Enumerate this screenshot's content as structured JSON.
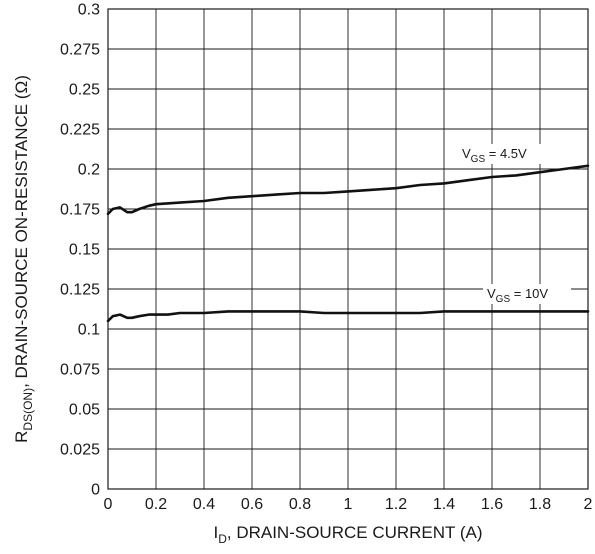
{
  "chart_data": {
    "type": "line",
    "xlabel": {
      "main": "I",
      "sub": "D",
      "rest": ", DRAIN-SOURCE CURRENT (A)"
    },
    "ylabel": {
      "main": "R",
      "sub": "DS(ON)",
      "rest": ", DRAIN-SOURCE ON-RESISTANCE (Ω)"
    },
    "xlim": [
      0,
      2
    ],
    "ylim": [
      0,
      0.3
    ],
    "x_ticks": [
      "0",
      "0.2",
      "0.4",
      "0.6",
      "0.8",
      "1",
      "1.2",
      "1.4",
      "1.6",
      "1.8",
      "2"
    ],
    "y_ticks": [
      "0",
      "0.025",
      "0.05",
      "0.075",
      "0.1",
      "0.125",
      "0.15",
      "0.175",
      "0.2",
      "0.225",
      "0.25",
      "0.275",
      "0.3"
    ],
    "grid": true,
    "series": [
      {
        "name": "V_GS = 4.5V",
        "label": {
          "main": "V",
          "sub": "GS",
          "rest": " = 4.5V"
        },
        "points": [
          [
            0,
            0.172
          ],
          [
            0.02,
            0.175
          ],
          [
            0.05,
            0.176
          ],
          [
            0.08,
            0.173
          ],
          [
            0.1,
            0.173
          ],
          [
            0.13,
            0.175
          ],
          [
            0.17,
            0.177
          ],
          [
            0.2,
            0.178
          ],
          [
            0.3,
            0.179
          ],
          [
            0.4,
            0.18
          ],
          [
            0.5,
            0.182
          ],
          [
            0.6,
            0.183
          ],
          [
            0.7,
            0.184
          ],
          [
            0.8,
            0.185
          ],
          [
            0.9,
            0.185
          ],
          [
            1.0,
            0.186
          ],
          [
            1.1,
            0.187
          ],
          [
            1.2,
            0.188
          ],
          [
            1.3,
            0.19
          ],
          [
            1.4,
            0.191
          ],
          [
            1.5,
            0.193
          ],
          [
            1.6,
            0.195
          ],
          [
            1.7,
            0.196
          ],
          [
            1.8,
            0.198
          ],
          [
            1.9,
            0.2
          ],
          [
            2.0,
            0.202
          ]
        ]
      },
      {
        "name": "V_GS = 10V",
        "label": {
          "main": "V",
          "sub": "GS",
          "rest": " = 10V"
        },
        "points": [
          [
            0,
            0.105
          ],
          [
            0.02,
            0.108
          ],
          [
            0.05,
            0.109
          ],
          [
            0.08,
            0.107
          ],
          [
            0.1,
            0.107
          ],
          [
            0.13,
            0.108
          ],
          [
            0.17,
            0.109
          ],
          [
            0.25,
            0.109
          ],
          [
            0.3,
            0.11
          ],
          [
            0.4,
            0.11
          ],
          [
            0.5,
            0.111
          ],
          [
            0.6,
            0.111
          ],
          [
            0.7,
            0.111
          ],
          [
            0.8,
            0.111
          ],
          [
            0.9,
            0.11
          ],
          [
            1.0,
            0.11
          ],
          [
            1.1,
            0.11
          ],
          [
            1.2,
            0.11
          ],
          [
            1.3,
            0.11
          ],
          [
            1.4,
            0.111
          ],
          [
            1.5,
            0.111
          ],
          [
            1.6,
            0.111
          ],
          [
            1.7,
            0.111
          ],
          [
            1.8,
            0.111
          ],
          [
            1.9,
            0.111
          ],
          [
            2.0,
            0.111
          ]
        ]
      }
    ]
  }
}
